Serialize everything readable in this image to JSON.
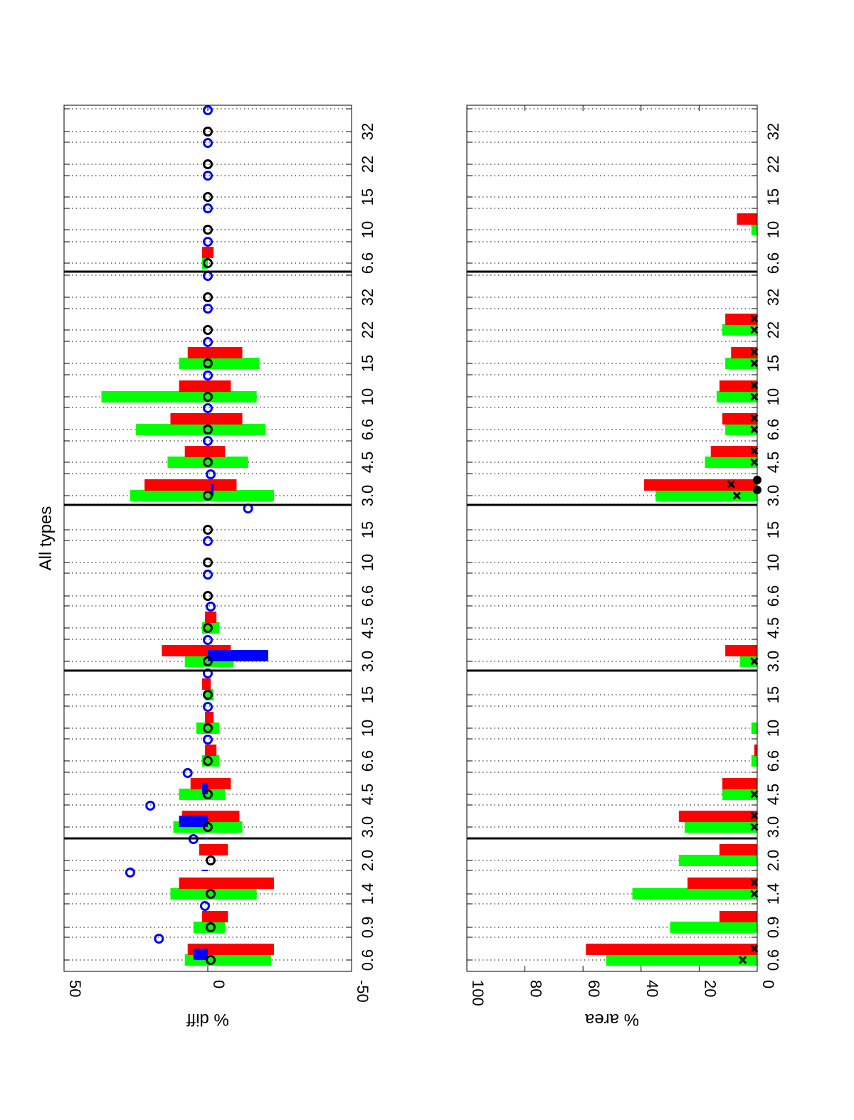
{
  "chart_data": [
    {
      "type": "bar",
      "title": "All types",
      "ylabel": "% diff",
      "xlabel": "",
      "ylim": [
        -50,
        50
      ],
      "y_ticks": [
        "50",
        "0",
        "-50"
      ],
      "categories": [
        "0.6",
        "0.9",
        "1.4",
        "2.0",
        "3.0",
        "4.5",
        "6.6",
        "10",
        "15",
        "3.0",
        "4.5",
        "6.6",
        "10",
        "15",
        "3.0",
        "4.5",
        "6.6",
        "10",
        "15",
        "22",
        "32",
        "6.6",
        "10",
        "15",
        "22",
        "32"
      ],
      "groups": [
        {
          "category_indices": [
            0,
            1,
            2,
            3
          ]
        },
        {
          "category_indices": [
            4,
            5,
            6,
            7,
            8
          ]
        },
        {
          "category_indices": [
            9,
            10,
            11,
            12,
            13
          ]
        },
        {
          "category_indices": [
            14,
            15,
            16,
            17,
            18,
            19,
            20
          ]
        },
        {
          "category_indices": [
            21,
            22,
            23,
            24,
            25
          ]
        }
      ],
      "grid": "dotted-x",
      "series": [
        {
          "color": "#00ff00",
          "kind": "bar-range",
          "values": [
            [
              8,
              -22
            ],
            [
              5,
              -6
            ],
            [
              13,
              -17
            ],
            [
              null,
              null
            ],
            [
              12,
              -12
            ],
            [
              10,
              -6
            ],
            [
              2,
              -4
            ],
            [
              4,
              -4
            ],
            [
              1,
              -2
            ],
            [
              8,
              -9
            ],
            [
              2,
              -4
            ],
            [
              null,
              null
            ],
            [
              null,
              null
            ],
            [
              null,
              null
            ],
            [
              27,
              -23
            ],
            [
              14,
              -14
            ],
            [
              25,
              -20
            ],
            [
              37,
              -17
            ],
            [
              10,
              -18
            ],
            [
              null,
              null
            ],
            [
              null,
              null
            ],
            [
              2,
              0
            ],
            [
              null,
              null
            ],
            [
              null,
              null
            ],
            [
              null,
              null
            ],
            [
              null,
              null
            ]
          ]
        },
        {
          "color": "#ff0000",
          "kind": "bar-range",
          "values": [
            [
              7,
              -23
            ],
            [
              2,
              -7
            ],
            [
              10,
              -23
            ],
            [
              3,
              -7
            ],
            [
              9,
              -11
            ],
            [
              6,
              -8
            ],
            [
              1,
              -3
            ],
            [
              1,
              -2
            ],
            [
              2,
              -1
            ],
            [
              16,
              -8
            ],
            [
              1,
              -3
            ],
            [
              null,
              null
            ],
            [
              null,
              null
            ],
            [
              null,
              null
            ],
            [
              22,
              -10
            ],
            [
              8,
              -6
            ],
            [
              13,
              -12
            ],
            [
              10,
              -8
            ],
            [
              7,
              -12
            ],
            [
              null,
              null
            ],
            [
              null,
              null
            ],
            [
              2,
              -2
            ],
            [
              null,
              null
            ],
            [
              null,
              null
            ],
            [
              null,
              null
            ],
            [
              null,
              null
            ]
          ]
        },
        {
          "color": "#0000ff",
          "kind": "bar-range",
          "values": [
            [
              5,
              0
            ],
            [
              null,
              null
            ],
            [
              null,
              null
            ],
            [
              null,
              null
            ],
            [
              10,
              0
            ],
            [
              2,
              0
            ],
            [
              null,
              null
            ],
            [
              null,
              null
            ],
            [
              null,
              null
            ],
            [
              0,
              -21
            ],
            [
              null,
              null
            ],
            [
              null,
              null
            ],
            [
              null,
              null
            ],
            [
              null,
              null
            ],
            [
              -1,
              -2
            ],
            [
              null,
              null
            ],
            [
              null,
              null
            ],
            [
              null,
              null
            ],
            [
              null,
              null
            ],
            [
              null,
              null
            ],
            [
              null,
              null
            ],
            [
              null,
              null
            ],
            [
              null,
              null
            ],
            [
              null,
              null
            ],
            [
              null,
              null
            ],
            [
              null,
              null
            ]
          ]
        },
        {
          "color": "#0000ff",
          "kind": "open-circle",
          "values": [
            17,
            1,
            27,
            5,
            20,
            7,
            0,
            0,
            0,
            0,
            -1,
            0,
            0,
            -14,
            -1,
            0,
            0,
            0,
            0,
            0,
            0,
            0,
            0,
            0,
            0,
            0
          ]
        },
        {
          "color": "#000000",
          "kind": "open-circle",
          "values": [
            -1,
            -1,
            -1,
            -1,
            0,
            0,
            0,
            0,
            0,
            0,
            0,
            0,
            0,
            0,
            0,
            0,
            0,
            0,
            0,
            0,
            0,
            0,
            0,
            0,
            0,
            0
          ]
        }
      ]
    },
    {
      "type": "bar",
      "ylabel": "% area",
      "xlabel": "",
      "ylim": [
        0,
        100
      ],
      "y_ticks": [
        "100",
        "80",
        "60",
        "40",
        "20",
        "0"
      ],
      "categories": [
        "0.6",
        "0.9",
        "1.4",
        "2.0",
        "3.0",
        "4.5",
        "6.6",
        "10",
        "15",
        "3.0",
        "4.5",
        "6.6",
        "10",
        "15",
        "3.0",
        "4.5",
        "6.6",
        "10",
        "15",
        "22",
        "32",
        "6.6",
        "10",
        "15",
        "22",
        "32"
      ],
      "grid": "dotted-x",
      "series": [
        {
          "color": "#00ff00",
          "kind": "bar",
          "values": [
            52,
            30,
            43,
            27,
            25,
            12,
            2,
            2,
            0,
            6,
            0,
            0,
            0,
            0,
            35,
            18,
            11,
            14,
            11,
            12,
            0,
            0,
            2,
            0,
            0,
            0
          ]
        },
        {
          "color": "#ff0000",
          "kind": "bar",
          "values": [
            59,
            13,
            24,
            13,
            27,
            12,
            1,
            0,
            0,
            11,
            0,
            0,
            0,
            0,
            39,
            16,
            12,
            13,
            9,
            11,
            0,
            0,
            7,
            0,
            0,
            0
          ]
        },
        {
          "color": "#000000",
          "kind": "x-marker",
          "values": [
            [
              5,
              1
            ],
            [
              null,
              null
            ],
            [
              1,
              1
            ],
            [
              null,
              null
            ],
            [
              1,
              1
            ],
            [
              1,
              null
            ],
            [
              null,
              null
            ],
            [
              null,
              null
            ],
            [
              null,
              null
            ],
            [
              1,
              null
            ],
            [
              null,
              null
            ],
            [
              null,
              null
            ],
            [
              null,
              null
            ],
            [
              null,
              null
            ],
            [
              7,
              9
            ],
            [
              1,
              1
            ],
            [
              1,
              1
            ],
            [
              1,
              1
            ],
            [
              1,
              1
            ],
            [
              1,
              1
            ],
            [
              null,
              null
            ],
            [
              null,
              null
            ],
            [
              null,
              null
            ],
            [
              null,
              null
            ],
            [
              null,
              null
            ],
            [
              null,
              null
            ]
          ]
        },
        {
          "color": "#000000",
          "kind": "filled-circle",
          "values": [
            null,
            null,
            null,
            null,
            null,
            null,
            null,
            null,
            null,
            null,
            null,
            null,
            null,
            null,
            1,
            null,
            null,
            null,
            null,
            null,
            null,
            null,
            null,
            null,
            null,
            null
          ]
        }
      ]
    }
  ]
}
